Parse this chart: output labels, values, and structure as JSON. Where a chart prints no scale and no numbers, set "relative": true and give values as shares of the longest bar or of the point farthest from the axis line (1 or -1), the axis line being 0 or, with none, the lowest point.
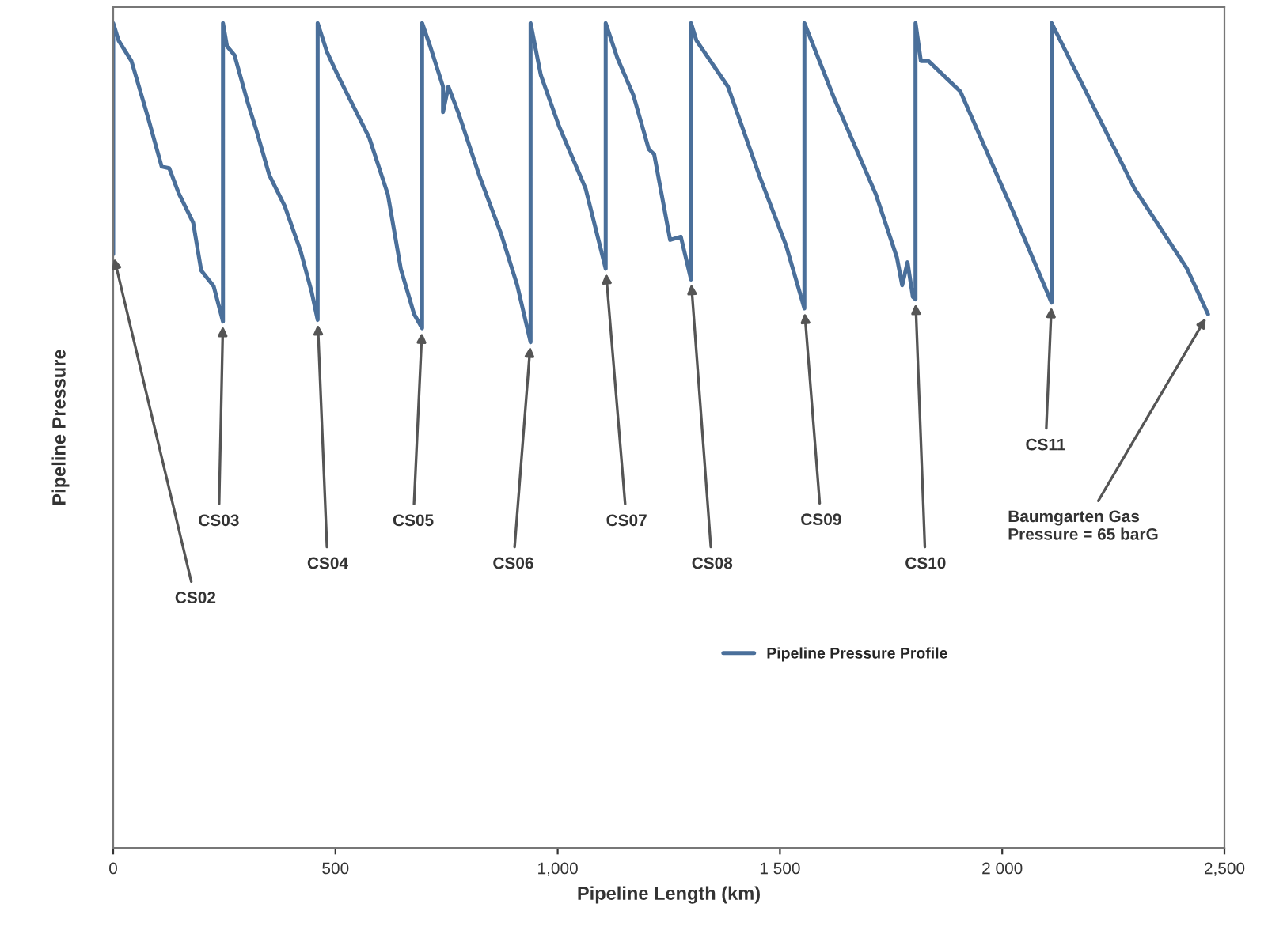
{
  "chart_data": {
    "type": "line",
    "relative": true,
    "xlabel": "Pipeline Length (km)",
    "ylabel": "Pipeline Pressure",
    "xlim": [
      0,
      2500
    ],
    "xticks": [
      0,
      500,
      {
        "value": 1000,
        "label": "1,000"
      },
      {
        "value": 1500,
        "label": "1 500"
      },
      {
        "value": 2000,
        "label": "2 000"
      },
      {
        "value": 2500,
        "label": "2,500"
      }
    ],
    "legend": "bottom",
    "marker": "none",
    "line_style": "solid",
    "grid": false,
    "series": [
      {
        "name": "Pipeline Pressure Profile",
        "color": "#4a6f9a",
        "x": [
          0,
          0,
          12,
          41,
          77,
          94,
          109,
          126,
          148,
          180,
          198,
          226,
          247,
          247,
          256,
          273,
          303,
          321,
          351,
          386,
          422,
          446,
          460,
          460,
          481,
          505,
          576,
          618,
          647,
          677,
          695,
          695,
          713,
          742,
          742,
          754,
          778,
          825,
          873,
          909,
          939,
          939,
          962,
          1003,
          1063,
          1108,
          1108,
          1134,
          1170,
          1205,
          1217,
          1253,
          1277,
          1300,
          1300,
          1312,
          1383,
          1455,
          1514,
          1555,
          1555,
          1621,
          1716,
          1763,
          1775,
          1787,
          1799,
          1805,
          1805,
          1817,
          1834,
          1906,
          2024,
          2111,
          2111,
          2298,
          2416,
          2463
        ],
        "values": [
          0.72,
          1.0,
          0.979,
          0.954,
          0.888,
          0.855,
          0.826,
          0.824,
          0.793,
          0.758,
          0.7,
          0.681,
          0.638,
          1.0,
          0.972,
          0.961,
          0.903,
          0.872,
          0.816,
          0.778,
          0.723,
          0.675,
          0.64,
          1.0,
          0.965,
          0.937,
          0.861,
          0.792,
          0.702,
          0.647,
          0.63,
          1.0,
          0.972,
          0.923,
          0.892,
          0.923,
          0.889,
          0.813,
          0.744,
          0.682,
          0.613,
          1.0,
          0.937,
          0.875,
          0.799,
          0.702,
          1.0,
          0.958,
          0.913,
          0.847,
          0.841,
          0.737,
          0.741,
          0.689,
          1.0,
          0.979,
          0.923,
          0.813,
          0.73,
          0.654,
          1.0,
          0.91,
          0.792,
          0.716,
          0.682,
          0.71,
          0.668,
          0.665,
          1.0,
          0.954,
          0.954,
          0.917,
          0.772,
          0.661,
          1.0,
          0.799,
          0.702,
          0.647
        ]
      }
    ],
    "annotations": [
      {
        "text": "CS02",
        "x": 0,
        "y": 0.72
      },
      {
        "text": "CS03",
        "x": 247,
        "y": 0.638
      },
      {
        "text": "CS04",
        "x": 460,
        "y": 0.64
      },
      {
        "text": "CS05",
        "x": 695,
        "y": 0.63
      },
      {
        "text": "CS06",
        "x": 939,
        "y": 0.613
      },
      {
        "text": "CS07",
        "x": 1108,
        "y": 0.702
      },
      {
        "text": "CS08",
        "x": 1300,
        "y": 0.689
      },
      {
        "text": "CS09",
        "x": 1555,
        "y": 0.654
      },
      {
        "text": "CS10",
        "x": 1805,
        "y": 0.665
      },
      {
        "text": "CS11",
        "x": 2111,
        "y": 0.661
      },
      {
        "text": "Baumgarten Gas\nPressure = 65 barG",
        "x": 2463,
        "y": 0.647
      }
    ]
  }
}
